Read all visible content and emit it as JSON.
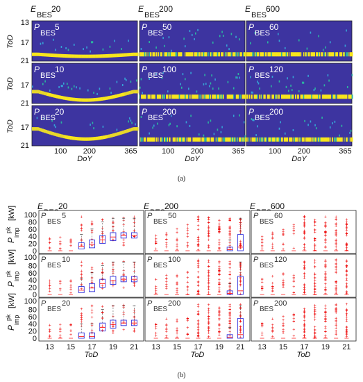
{
  "figure": {
    "caption_a": "(a)",
    "caption_b": "(b)"
  },
  "labels": {
    "energy_sym": "E",
    "power_sym": "P",
    "sub": "BES",
    "tod": "ToD",
    "doy": "DoY",
    "kw": "[kW]",
    "pimp_sym": "P",
    "pimp_sub": "imp",
    "pimp_sup": "pk"
  },
  "chart_data": [
    {
      "type": "heatmap",
      "panel": "a",
      "columns": [
        {
          "energy": "20",
          "rows": [
            "5",
            "10",
            "20"
          ]
        },
        {
          "energy": "200",
          "rows": [
            "50",
            "100",
            "200"
          ]
        },
        {
          "energy": "600",
          "rows": [
            "60",
            "120",
            "200"
          ]
        }
      ],
      "xlabel": "DoY",
      "ylabel": "ToD",
      "x_ticks": [
        "100",
        "200",
        "365"
      ],
      "y_ticks": [
        "13",
        "17",
        "21"
      ],
      "colors": {
        "background": "#3d34a0",
        "high": "#f8e61c",
        "mid": "#2bb5a0",
        "low": "#36a2d6"
      }
    },
    {
      "type": "box",
      "panel": "b",
      "columns": [
        {
          "energy": "20",
          "rows": [
            "5",
            "10",
            "20"
          ]
        },
        {
          "energy": "200",
          "rows": [
            "50",
            "100",
            "200"
          ]
        },
        {
          "energy": "600",
          "rows": [
            "60",
            "120",
            "200"
          ]
        }
      ],
      "xlabel": "ToD",
      "ylabel": "P_imp^pk [kW]",
      "x_ticks": [
        "13",
        "15",
        "17",
        "19",
        "21"
      ],
      "y_ticks": [
        "0",
        "20",
        "40",
        "60",
        "80",
        "100"
      ],
      "ylim": [
        0,
        100
      ],
      "colors": {
        "box": "#3333dd",
        "median": "#ff2222",
        "outlier": "#ee1111"
      }
    }
  ]
}
